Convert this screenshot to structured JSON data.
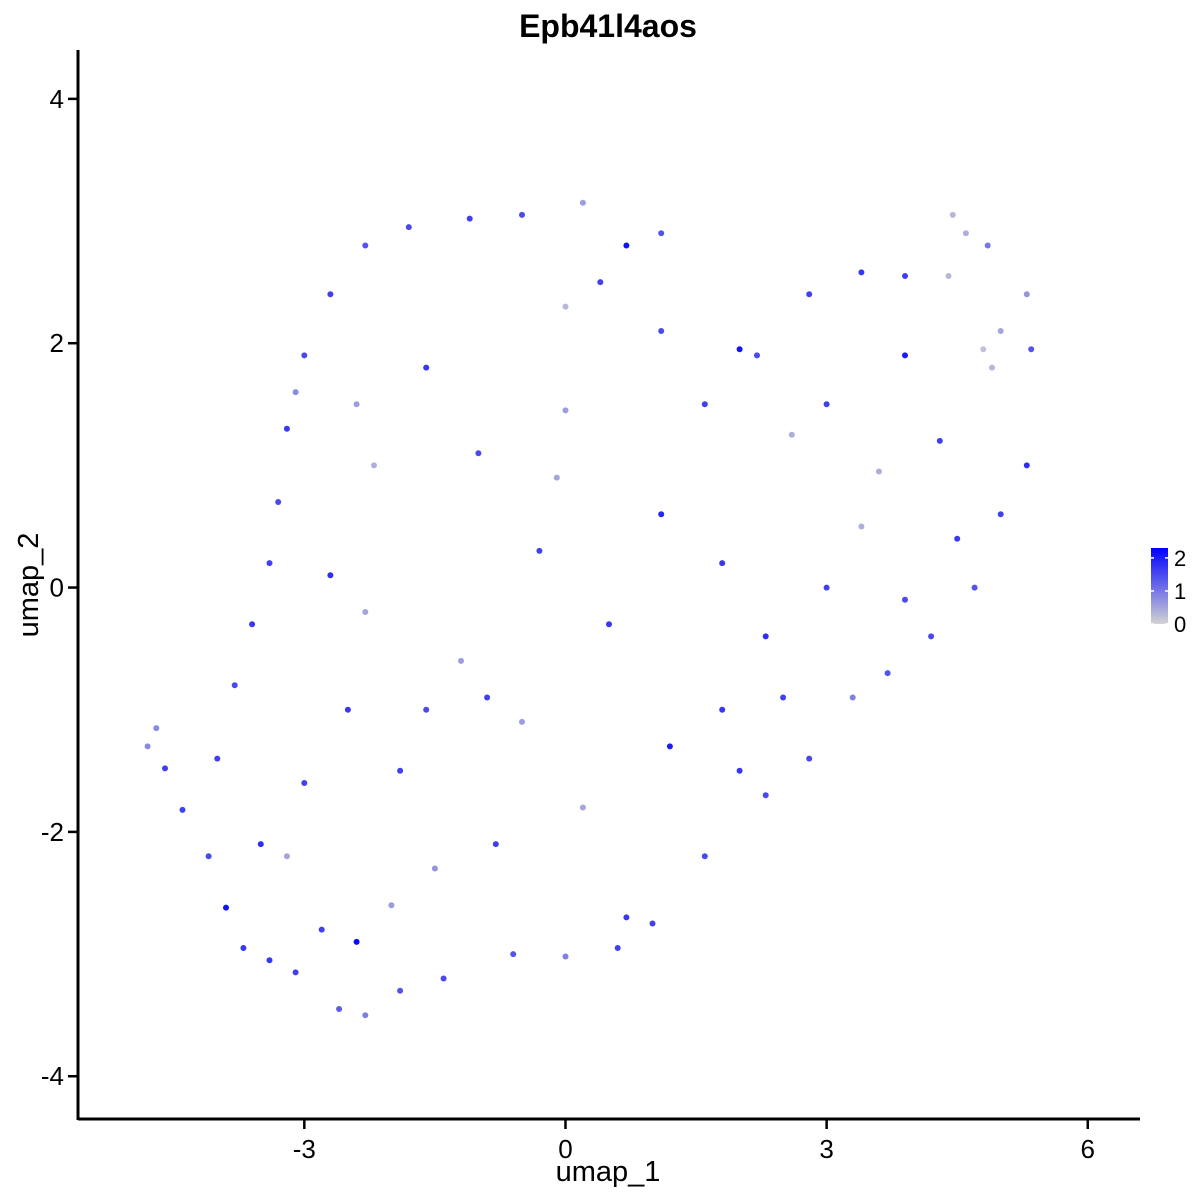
{
  "chart_data": {
    "type": "scatter",
    "title": "Epb41l4aos",
    "xlabel": "umap_1",
    "ylabel": "umap_2",
    "xlim": [
      -5.6,
      6.6
    ],
    "ylim": [
      -4.35,
      4.4
    ],
    "xticks": [
      -3,
      0,
      3,
      6
    ],
    "yticks": [
      -4,
      -2,
      0,
      2,
      4
    ],
    "xtick_labels": [
      "-3",
      "0",
      "3",
      "6"
    ],
    "ytick_labels": [
      "-4",
      "-2",
      "0",
      "2",
      "4"
    ],
    "grid": false,
    "legend": {
      "placement": "right",
      "min": 0,
      "max": 2.3,
      "ticks": [
        0,
        1,
        2
      ],
      "tick_labels": [
        "0",
        "1",
        "2"
      ],
      "low_color": "#d3d3d3",
      "high_color": "#0000ff"
    },
    "series": [
      {
        "values": [
          {
            "x": -4.8,
            "y": -1.3,
            "v": 0.8
          },
          {
            "x": -4.7,
            "y": -1.15,
            "v": 0.8
          },
          {
            "x": -4.6,
            "y": -1.48,
            "v": 1.6
          },
          {
            "x": -4.4,
            "y": -1.82,
            "v": 1.6
          },
          {
            "x": -4.1,
            "y": -2.2,
            "v": 1.5
          },
          {
            "x": -3.9,
            "y": -2.62,
            "v": 2.1
          },
          {
            "x": -3.7,
            "y": -2.95,
            "v": 1.7
          },
          {
            "x": -3.4,
            "y": -3.05,
            "v": 1.7
          },
          {
            "x": -3.1,
            "y": -3.15,
            "v": 1.6
          },
          {
            "x": -2.6,
            "y": -3.45,
            "v": 1.3
          },
          {
            "x": -2.3,
            "y": -3.5,
            "v": 0.9
          },
          {
            "x": -1.9,
            "y": -3.3,
            "v": 1.4
          },
          {
            "x": -1.4,
            "y": -3.2,
            "v": 1.5
          },
          {
            "x": -0.6,
            "y": -3.0,
            "v": 1.4
          },
          {
            "x": 0.0,
            "y": -3.02,
            "v": 0.9
          },
          {
            "x": 0.6,
            "y": -2.95,
            "v": 1.6
          },
          {
            "x": 1.0,
            "y": -2.75,
            "v": 1.6
          },
          {
            "x": 1.6,
            "y": -2.2,
            "v": 1.5
          },
          {
            "x": 2.3,
            "y": -1.7,
            "v": 1.5
          },
          {
            "x": 2.8,
            "y": -1.4,
            "v": 1.5
          },
          {
            "x": 3.3,
            "y": -0.9,
            "v": 0.9
          },
          {
            "x": 3.7,
            "y": -0.7,
            "v": 1.4
          },
          {
            "x": 4.2,
            "y": -0.4,
            "v": 1.5
          },
          {
            "x": 4.7,
            "y": 0.0,
            "v": 1.4
          },
          {
            "x": 5.0,
            "y": 0.6,
            "v": 1.6
          },
          {
            "x": 5.3,
            "y": 1.0,
            "v": 1.8
          },
          {
            "x": 5.35,
            "y": 1.95,
            "v": 1.4
          },
          {
            "x": 5.3,
            "y": 2.4,
            "v": 0.7
          },
          {
            "x": 4.85,
            "y": 2.8,
            "v": 1.0
          },
          {
            "x": 4.45,
            "y": 3.05,
            "v": 0.3
          },
          {
            "x": 3.9,
            "y": 2.55,
            "v": 1.6
          },
          {
            "x": 3.4,
            "y": 2.58,
            "v": 1.7
          },
          {
            "x": 2.8,
            "y": 2.4,
            "v": 1.6
          },
          {
            "x": 2.2,
            "y": 1.9,
            "v": 1.5
          },
          {
            "x": 1.6,
            "y": 1.5,
            "v": 1.6
          },
          {
            "x": 1.1,
            "y": 2.1,
            "v": 1.5
          },
          {
            "x": 1.1,
            "y": 2.9,
            "v": 1.4
          },
          {
            "x": 0.7,
            "y": 2.8,
            "v": 2.1
          },
          {
            "x": 0.2,
            "y": 3.15,
            "v": 0.6
          },
          {
            "x": -0.5,
            "y": 3.05,
            "v": 1.5
          },
          {
            "x": -1.1,
            "y": 3.02,
            "v": 1.6
          },
          {
            "x": -1.8,
            "y": 2.95,
            "v": 1.5
          },
          {
            "x": -2.3,
            "y": 2.8,
            "v": 1.4
          },
          {
            "x": -2.7,
            "y": 2.4,
            "v": 1.6
          },
          {
            "x": -3.0,
            "y": 1.9,
            "v": 1.5
          },
          {
            "x": -3.1,
            "y": 1.6,
            "v": 0.8
          },
          {
            "x": -3.2,
            "y": 1.3,
            "v": 1.7
          },
          {
            "x": -3.3,
            "y": 0.7,
            "v": 1.5
          },
          {
            "x": -3.4,
            "y": 0.2,
            "v": 1.6
          },
          {
            "x": -3.6,
            "y": -0.3,
            "v": 1.7
          },
          {
            "x": -3.8,
            "y": -0.8,
            "v": 1.5
          },
          {
            "x": -4.0,
            "y": -1.4,
            "v": 1.6
          },
          {
            "x": -3.2,
            "y": -2.2,
            "v": 0.5
          },
          {
            "x": -2.4,
            "y": -2.9,
            "v": 2.2
          },
          {
            "x": -2.0,
            "y": -2.6,
            "v": 0.6
          },
          {
            "x": -1.5,
            "y": -2.3,
            "v": 0.7
          },
          {
            "x": -0.8,
            "y": -2.1,
            "v": 1.6
          },
          {
            "x": 0.2,
            "y": -1.8,
            "v": 0.5
          },
          {
            "x": -0.5,
            "y": -1.1,
            "v": 0.6
          },
          {
            "x": -1.2,
            "y": -0.6,
            "v": 0.6
          },
          {
            "x": -2.3,
            "y": -0.2,
            "v": 0.5
          },
          {
            "x": -2.7,
            "y": 0.1,
            "v": 1.8
          },
          {
            "x": -2.4,
            "y": 1.5,
            "v": 0.6
          },
          {
            "x": -2.2,
            "y": 1.0,
            "v": 0.4
          },
          {
            "x": -0.1,
            "y": 0.9,
            "v": 0.5
          },
          {
            "x": 0.0,
            "y": 2.3,
            "v": 0.3
          },
          {
            "x": 0.0,
            "y": 1.45,
            "v": 0.6
          },
          {
            "x": 2.6,
            "y": 1.25,
            "v": 0.4
          },
          {
            "x": 3.4,
            "y": 0.5,
            "v": 0.4
          },
          {
            "x": 3.6,
            "y": 0.95,
            "v": 0.4
          },
          {
            "x": 4.8,
            "y": 1.95,
            "v": 0.2
          },
          {
            "x": 4.9,
            "y": 1.8,
            "v": 0.3
          },
          {
            "x": 5.0,
            "y": 2.1,
            "v": 0.5
          },
          {
            "x": 4.4,
            "y": 2.55,
            "v": 0.3
          },
          {
            "x": 4.6,
            "y": 2.9,
            "v": 0.4
          },
          {
            "x": 0.7,
            "y": -2.7,
            "v": 1.7
          },
          {
            "x": 1.2,
            "y": -1.3,
            "v": 2.0
          },
          {
            "x": 1.8,
            "y": -1.0,
            "v": 1.7
          },
          {
            "x": 2.3,
            "y": -0.4,
            "v": 1.8
          },
          {
            "x": 1.8,
            "y": 0.2,
            "v": 1.7
          },
          {
            "x": 1.1,
            "y": 0.6,
            "v": 1.9
          },
          {
            "x": 0.5,
            "y": -0.3,
            "v": 1.7
          },
          {
            "x": -0.3,
            "y": 0.3,
            "v": 1.6
          },
          {
            "x": -1.0,
            "y": 1.1,
            "v": 1.5
          },
          {
            "x": -1.6,
            "y": 1.8,
            "v": 1.7
          },
          {
            "x": 0.4,
            "y": 2.5,
            "v": 1.6
          },
          {
            "x": 2.0,
            "y": 1.95,
            "v": 2.1
          },
          {
            "x": 3.0,
            "y": 1.5,
            "v": 1.6
          },
          {
            "x": 3.9,
            "y": 1.9,
            "v": 2.0
          },
          {
            "x": 4.3,
            "y": 1.2,
            "v": 1.6
          },
          {
            "x": 4.5,
            "y": 0.4,
            "v": 1.7
          },
          {
            "x": 3.9,
            "y": -0.1,
            "v": 1.5
          },
          {
            "x": 3.0,
            "y": 0.0,
            "v": 1.6
          },
          {
            "x": 2.5,
            "y": -0.9,
            "v": 1.6
          },
          {
            "x": 2.0,
            "y": -1.5,
            "v": 1.7
          },
          {
            "x": -1.9,
            "y": -1.5,
            "v": 1.6
          },
          {
            "x": -2.5,
            "y": -1.0,
            "v": 1.7
          },
          {
            "x": -3.0,
            "y": -1.6,
            "v": 1.6
          },
          {
            "x": -3.5,
            "y": -2.1,
            "v": 1.8
          },
          {
            "x": -2.8,
            "y": -2.8,
            "v": 1.6
          },
          {
            "x": -1.6,
            "y": -1.0,
            "v": 1.5
          },
          {
            "x": -0.9,
            "y": -0.9,
            "v": 1.6
          }
        ]
      }
    ]
  }
}
